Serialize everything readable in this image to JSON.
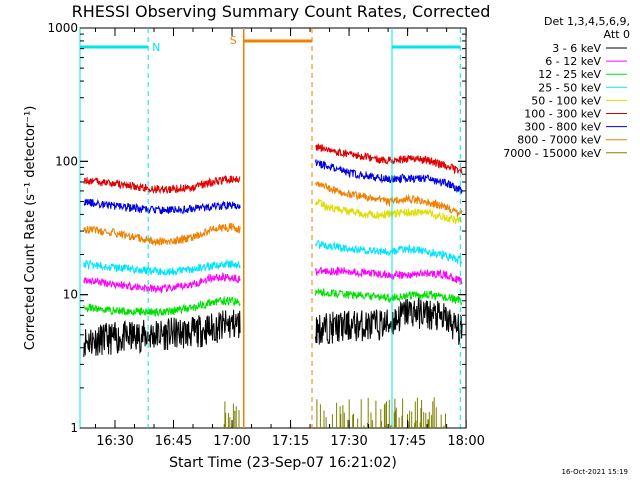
{
  "chart_data": {
    "type": "line",
    "title": "RHESSI Observing Summary Count Rates, Corrected",
    "xlabel": "Start Time (23-Sep-07 16:21:02)",
    "ylabel": "Corrected Count Rate (s⁻¹ detector⁻¹)",
    "yscale": "log",
    "ylim": [
      1,
      1000
    ],
    "xlim": [
      "16:21:02",
      "17:59:58"
    ],
    "x_ticks": [
      "16:30",
      "16:45",
      "17:00",
      "17:15",
      "17:30",
      "17:45",
      "18:00"
    ],
    "y_ticks": [
      "1",
      "10",
      "100",
      "1000"
    ],
    "legend_header": [
      "Det 1,3,4,5,6,9,",
      "Att 0"
    ],
    "timestamp": "16-Oct-2021 15:19",
    "markers": {
      "night": {
        "label": "N",
        "color": "#00e5e5",
        "intervals": [
          [
            "16:21:02",
            "16:38:30"
          ],
          [
            "17:41:00",
            "17:58:30"
          ]
        ]
      },
      "saa": {
        "label": "S",
        "color": "#f08000",
        "intervals": [
          [
            "17:03:00",
            "17:20:30"
          ]
        ]
      }
    },
    "gap": [
      "17:02:00",
      "17:21:30"
    ],
    "series": [
      {
        "name": "3 - 6 keV",
        "color": "#000000",
        "x": [
          "16:22",
          "16:30",
          "16:40",
          "16:50",
          "16:55",
          "17:00",
          "17:02",
          "17:21",
          "17:30",
          "17:40",
          "17:45",
          "17:50",
          "17:55",
          "17:59"
        ],
        "y": [
          4.5,
          4.7,
          5.0,
          5.2,
          5.6,
          6.0,
          6.0,
          5.5,
          5.8,
          6.0,
          7.5,
          7.2,
          6.5,
          5.2
        ]
      },
      {
        "name": "6 - 12 keV",
        "color": "#ff00ff",
        "x": [
          "16:22",
          "16:30",
          "16:40",
          "16:45",
          "16:50",
          "16:55",
          "17:00",
          "17:02",
          "17:21",
          "17:30",
          "17:40",
          "17:45",
          "17:50",
          "17:55",
          "17:59"
        ],
        "y": [
          13.0,
          12.0,
          11.0,
          11.2,
          12.0,
          13.5,
          13.5,
          13.0,
          15.0,
          15.0,
          14.0,
          14.0,
          14.5,
          14.0,
          12.5
        ]
      },
      {
        "name": "12 - 25 keV",
        "color": "#00e000",
        "x": [
          "16:22",
          "16:30",
          "16:40",
          "16:45",
          "16:50",
          "16:55",
          "17:00",
          "17:02",
          "17:21",
          "17:30",
          "17:40",
          "17:45",
          "17:50",
          "17:55",
          "17:59"
        ],
        "y": [
          8.0,
          7.6,
          7.4,
          7.6,
          8.0,
          8.8,
          9.0,
          8.6,
          10.5,
          10.0,
          9.5,
          9.8,
          10.0,
          9.5,
          9.0
        ]
      },
      {
        "name": "25 - 50 keV",
        "color": "#00e5ff",
        "x": [
          "16:22",
          "16:30",
          "16:40",
          "16:45",
          "16:50",
          "16:55",
          "17:00",
          "17:02",
          "17:21",
          "17:30",
          "17:40",
          "17:45",
          "17:50",
          "17:55",
          "17:59"
        ],
        "y": [
          17.0,
          16.0,
          15.0,
          15.0,
          15.6,
          16.5,
          17.0,
          16.5,
          24.0,
          22.0,
          21.0,
          22.0,
          21.0,
          19.5,
          18.0
        ]
      },
      {
        "name": "50 - 100 keV",
        "color": "#dddd00",
        "x": [
          "17:21",
          "17:25",
          "17:30",
          "17:35",
          "17:40",
          "17:45",
          "17:50",
          "17:55",
          "17:59"
        ],
        "y": [
          50.0,
          45.0,
          42.0,
          40.0,
          40.0,
          41.5,
          41.0,
          38.0,
          35.0
        ]
      },
      {
        "name": "100 - 300 keV",
        "color": "#e00000",
        "x": [
          "16:22",
          "16:30",
          "16:40",
          "16:45",
          "16:50",
          "16:55",
          "17:00",
          "17:02",
          "17:21",
          "17:30",
          "17:40",
          "17:45",
          "17:50",
          "17:55",
          "17:59"
        ],
        "y": [
          72.0,
          68.0,
          62.0,
          62.0,
          64.0,
          70.0,
          74.0,
          72.0,
          130.0,
          112.0,
          102.0,
          104.0,
          102.0,
          92.0,
          84.0
        ]
      },
      {
        "name": "300 - 800 keV",
        "color": "#0000e0",
        "x": [
          "16:22",
          "16:30",
          "16:40",
          "16:45",
          "16:50",
          "16:55",
          "17:00",
          "17:02",
          "17:21",
          "17:30",
          "17:40",
          "17:45",
          "17:50",
          "17:55",
          "17:59"
        ],
        "y": [
          50.0,
          46.0,
          43.0,
          43.0,
          44.0,
          45.5,
          47.0,
          45.0,
          98.0,
          82.0,
          74.0,
          75.0,
          74.0,
          68.0,
          60.0
        ]
      },
      {
        "name": "800 - 7000 keV",
        "color": "#f08000",
        "x": [
          "16:22",
          "16:30",
          "16:40",
          "16:45",
          "16:50",
          "16:55",
          "17:00",
          "17:02",
          "17:21",
          "17:30",
          "17:40",
          "17:45",
          "17:50",
          "17:55",
          "17:59"
        ],
        "y": [
          31.0,
          29.0,
          25.0,
          25.0,
          27.0,
          31.0,
          32.0,
          31.0,
          68.0,
          57.0,
          50.0,
          52.0,
          50.0,
          45.0,
          40.0
        ]
      },
      {
        "name": "7000 - 15000 keV",
        "color": "#808000",
        "x": [
          "16:58",
          "17:02",
          "17:41",
          "17:50",
          "17:55"
        ],
        "y": [
          1.3,
          1.3,
          1.3,
          1.35,
          1.3
        ]
      }
    ]
  }
}
